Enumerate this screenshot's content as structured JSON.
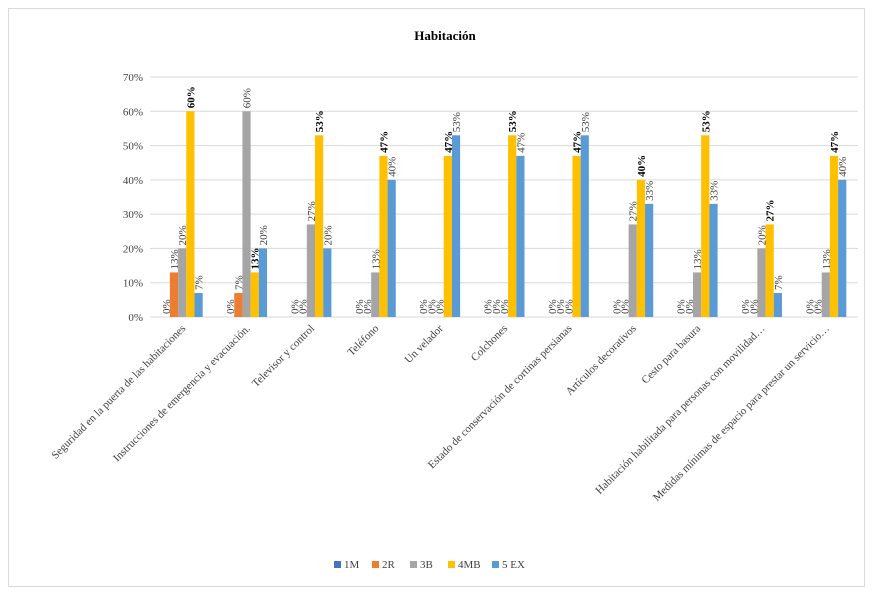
{
  "chart_data": {
    "type": "bar",
    "title": "Habitación",
    "xlabel": "",
    "ylabel": "",
    "ylim": [
      0,
      70
    ],
    "yticks": [
      "0%",
      "10%",
      "20%",
      "30%",
      "40%",
      "50%",
      "60%",
      "70%"
    ],
    "gridlines": true,
    "legend_position": "bottom",
    "categories": [
      "Seguridad en la puerta de las habitaciones",
      "Instrucciones de emergencia y evacuación.",
      "Televisor y control",
      "Teléfono",
      "Un velador",
      "Colchones",
      "Estado de conservación de cortinas persianas",
      "Artículos decorativos",
      "Cesto para basura",
      "Habitación habilitada para personas con movilidad…",
      "Medidas mínimas de espacio para prestar un servicio…"
    ],
    "series": [
      {
        "name": "1M",
        "color": "#4472c4",
        "values": [
          0,
          0,
          0,
          0,
          0,
          0,
          0,
          0,
          0,
          0,
          0
        ],
        "labels": [
          "0%",
          "0%",
          "0%",
          "0%",
          "0%",
          "0%",
          "0%",
          "0%",
          "0%",
          "0%",
          "0%"
        ]
      },
      {
        "name": "2R",
        "color": "#ed7d31",
        "values": [
          13,
          7,
          0,
          0,
          0,
          0,
          0,
          0,
          0,
          0,
          0
        ],
        "labels": [
          "13%",
          "7%",
          "0%",
          "0%",
          "0%",
          "0%",
          "0%",
          "0%",
          "0%",
          "0%",
          "0%"
        ]
      },
      {
        "name": "3B",
        "color": "#a5a5a5",
        "values": [
          20,
          60,
          27,
          13,
          0,
          0,
          0,
          27,
          13,
          20,
          13
        ],
        "labels": [
          "20%",
          "60%",
          "27%",
          "13%",
          "0%",
          "0%",
          "0%",
          "27%",
          "13%",
          "20%",
          "13%"
        ]
      },
      {
        "name": "4MB",
        "color": "#ffc000",
        "values": [
          60,
          13,
          53,
          47,
          47,
          53,
          47,
          40,
          53,
          27,
          47
        ],
        "labels": [
          "60%",
          "13%",
          "53%",
          "47%",
          "47%",
          "53%",
          "47%",
          "40%",
          "53%",
          "27%",
          "47%"
        ]
      },
      {
        "name": "5 EX",
        "color": "#5b9bd5",
        "values": [
          7,
          20,
          20,
          40,
          53,
          47,
          53,
          33,
          33,
          7,
          40
        ],
        "labels": [
          "7%",
          "20%",
          "20%",
          "40%",
          "53%",
          "47%",
          "53%",
          "33%",
          "33%",
          "7%",
          "40%"
        ]
      }
    ]
  },
  "colors": {
    "gridline": "#d9d9d9",
    "axis_text": "#404040",
    "label_text": "#404040",
    "highlight_label_text": "#000000",
    "frame_border": "#d9d9d9"
  }
}
